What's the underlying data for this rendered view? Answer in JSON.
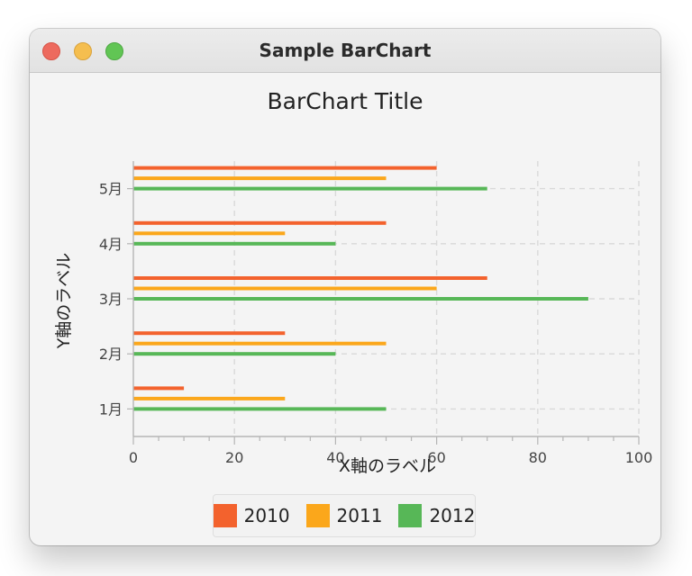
{
  "window": {
    "title": "Sample BarChart"
  },
  "chart_data": {
    "type": "bar",
    "orientation": "horizontal",
    "title": "BarChart Title",
    "xlabel": "X軸のラベル",
    "ylabel": "Y軸のラベル",
    "xlim": [
      0,
      100
    ],
    "x_ticks": [
      "0",
      "20",
      "40",
      "60",
      "80",
      "100"
    ],
    "categories": [
      "1月",
      "2月",
      "3月",
      "4月",
      "5月"
    ],
    "series": [
      {
        "name": "2010",
        "color": "#f3622d",
        "values": [
          10,
          30,
          70,
          50,
          60
        ]
      },
      {
        "name": "2011",
        "color": "#fba71b",
        "values": [
          30,
          50,
          60,
          30,
          50
        ]
      },
      {
        "name": "2012",
        "color": "#57b757",
        "values": [
          50,
          40,
          90,
          40,
          70
        ]
      }
    ],
    "grid": true,
    "legend_position": "bottom"
  }
}
